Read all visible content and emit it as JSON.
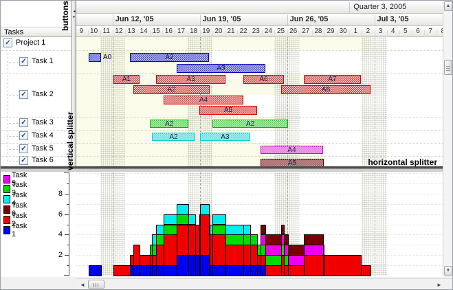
{
  "annotations": {
    "buttons": "buttons",
    "vertical_splitter": "vertical splitter",
    "horizontal_splitter": "horizontal splitter"
  },
  "icons": {
    "up_arrow": "▲",
    "down_arrow": "▼",
    "left_arrow": "◄",
    "right_arrow": "►",
    "collapse_left": "◂",
    "collapse_right": "▸",
    "check": "✓"
  },
  "tree": {
    "header": "Tasks",
    "items": [
      {
        "label": "Project 1",
        "level": 0,
        "checked": true
      },
      {
        "label": "Task 1",
        "level": 1,
        "checked": true
      },
      {
        "label": "Task 2",
        "level": 1,
        "checked": true
      },
      {
        "label": "Task 3",
        "level": 1,
        "checked": true
      },
      {
        "label": "Task 4",
        "level": 1,
        "checked": true
      },
      {
        "label": "Task 5",
        "level": 1,
        "checked": true
      },
      {
        "label": "Task 6",
        "level": 1,
        "checked": true
      }
    ]
  },
  "timeline": {
    "quarter_label": "Quarter 3, 2005",
    "weeks": [
      {
        "label": "Jun 12, '05",
        "start_day_index": 3
      },
      {
        "label": "Jun 19, '05",
        "start_day_index": 10
      },
      {
        "label": "Jun 26, '05",
        "start_day_index": 17
      },
      {
        "label": "Jul 3, '05",
        "start_day_index": 24
      }
    ],
    "day_labels": [
      "9",
      "10",
      "11",
      "12",
      "13",
      "14",
      "15",
      "16",
      "17",
      "18",
      "19",
      "20",
      "21",
      "22",
      "23",
      "24",
      "25",
      "26",
      "27",
      "28",
      "29",
      "30",
      "1",
      "2",
      "3",
      "4",
      "5",
      "6",
      "7",
      "8"
    ],
    "weekend_start_indexes": [
      2,
      9,
      16,
      23
    ],
    "quarter_start_day_index": 22
  },
  "chart_data": {
    "type": "gantt+stacked-step-histogram",
    "x_axis": {
      "unit": "days",
      "first_visible_day": "Jun 9, 2005",
      "days_visible": 30
    },
    "colors": {
      "t1": "#0000f0",
      "t2": "#f00000",
      "t3": "#00dc00",
      "t4": "#00eeee",
      "t5": "#ee00ee",
      "t6": "#7a0000"
    },
    "gantt_bars": [
      {
        "label": "A0",
        "task": "t1",
        "lane": 0,
        "start": 1.08,
        "end": 2.07,
        "label_outside": true
      },
      {
        "label": "A2",
        "task": "t1",
        "lane": 0,
        "start": 4.39,
        "end": 10.73
      },
      {
        "label": "A3",
        "task": "t1",
        "lane": 1,
        "start": 8.14,
        "end": 15.26
      },
      {
        "label": "A1",
        "task": "t2",
        "lane": 2,
        "start": 3.07,
        "end": 5.16
      },
      {
        "label": "A3",
        "task": "t2",
        "lane": 2,
        "start": 6.49,
        "end": 12.06
      },
      {
        "label": "A6",
        "task": "t2",
        "lane": 2,
        "start": 13.49,
        "end": 16.75
      },
      {
        "label": "A7",
        "task": "t2",
        "lane": 2,
        "start": 18.35,
        "end": 22.92
      },
      {
        "label": "A2",
        "task": "t2",
        "lane": 3,
        "start": 4.67,
        "end": 10.79
      },
      {
        "label": "A8",
        "task": "t2",
        "lane": 3,
        "start": 16.53,
        "end": 23.7
      },
      {
        "label": "A4",
        "task": "t2",
        "lane": 4,
        "start": 7.09,
        "end": 13.49
      },
      {
        "label": "A5",
        "task": "t2",
        "lane": 5,
        "start": 9.96,
        "end": 14.59
      },
      {
        "label": "A2",
        "task": "t3",
        "lane": 6,
        "start": 6.0,
        "end": 9.08
      },
      {
        "label": "A2",
        "task": "t3",
        "lane": 6,
        "start": 11.0,
        "end": 17.1
      },
      {
        "label": "A2",
        "task": "t4",
        "lane": 7,
        "start": 6.16,
        "end": 9.63
      },
      {
        "label": "A3",
        "task": "t4",
        "lane": 7,
        "start": 10.0,
        "end": 14.05
      },
      {
        "label": "A4",
        "task": "t5",
        "lane": 8,
        "start": 14.87,
        "end": 19.89
      },
      {
        "label": "A5",
        "task": "t6",
        "lane": 9,
        "start": 14.87,
        "end": 19.94
      }
    ],
    "histogram": {
      "stack_order": [
        "t1",
        "t2",
        "t3",
        "t4",
        "t5",
        "t6"
      ],
      "ylim": [
        0,
        10
      ],
      "major_ticks": [
        2,
        4,
        6,
        8
      ],
      "minor_ticks": [
        1,
        3,
        5,
        7,
        9
      ],
      "tick_labels": [
        "2",
        "4",
        "6",
        "8"
      ]
    },
    "legend": [
      {
        "label": "Task 5",
        "task": "t5"
      },
      {
        "label": "Task 3",
        "task": "t3"
      },
      {
        "label": "Task 4",
        "task": "t4"
      },
      {
        "label": "Task 6",
        "task": "t6"
      },
      {
        "label": "Task 2",
        "task": "t2"
      },
      {
        "label": "Task 1",
        "task": "t1"
      }
    ]
  }
}
